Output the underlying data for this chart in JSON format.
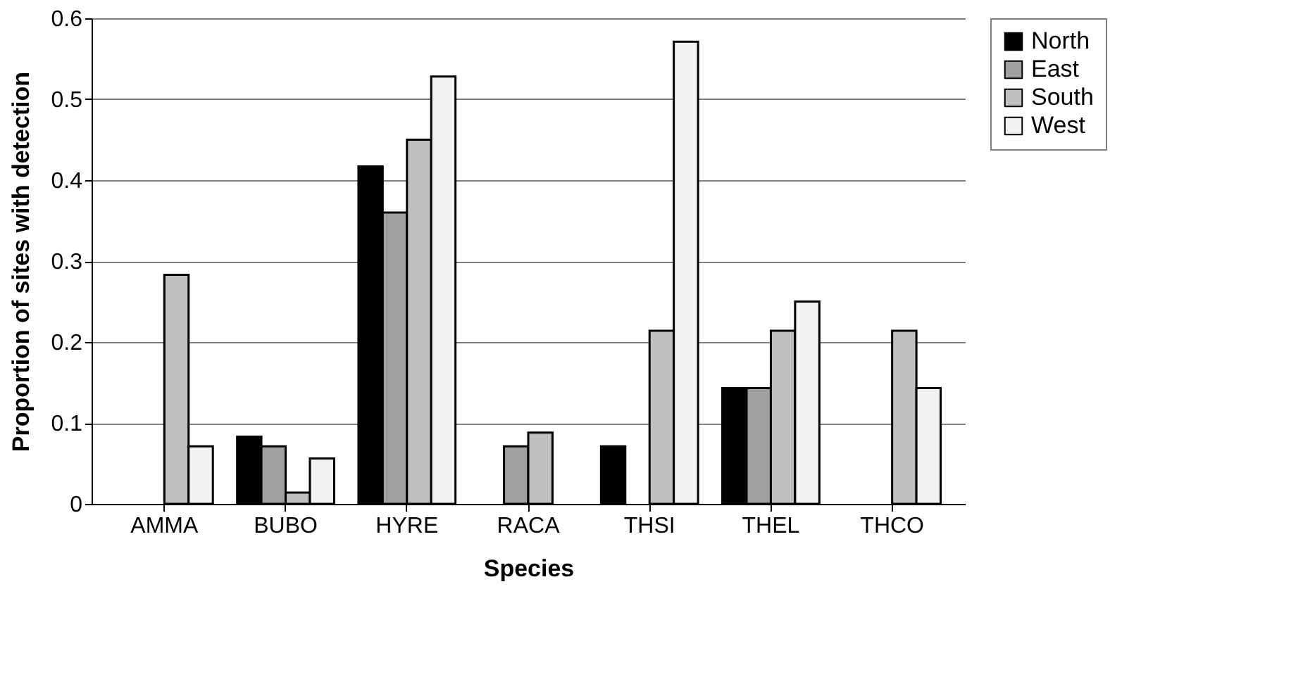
{
  "chart_data": {
    "type": "bar",
    "xlabel": "Species",
    "ylabel": "Proportion of sites with detection",
    "categories": [
      "AMMA",
      "BUBO",
      "HYRE",
      "RACA",
      "THSI",
      "THEL",
      "THCO"
    ],
    "series": [
      {
        "name": "North",
        "color": "#000000",
        "values": [
          null,
          0.083,
          0.417,
          null,
          0.071,
          0.143,
          null
        ]
      },
      {
        "name": "East",
        "color": "#a0a0a0",
        "values": [
          null,
          0.071,
          0.36,
          0.071,
          null,
          0.143,
          null
        ]
      },
      {
        "name": "South",
        "color": "#c0c0c0",
        "values": [
          0.283,
          0.014,
          0.45,
          0.088,
          0.214,
          0.214,
          0.214
        ]
      },
      {
        "name": "West",
        "color": "#f2f2f2",
        "values": [
          0.071,
          0.056,
          0.528,
          null,
          0.571,
          0.25,
          0.143
        ]
      }
    ],
    "ylim": [
      0,
      0.6
    ],
    "yticks": [
      0,
      0.1,
      0.2,
      0.3,
      0.4,
      0.5,
      0.6
    ],
    "grid": "y",
    "legend": "right"
  }
}
